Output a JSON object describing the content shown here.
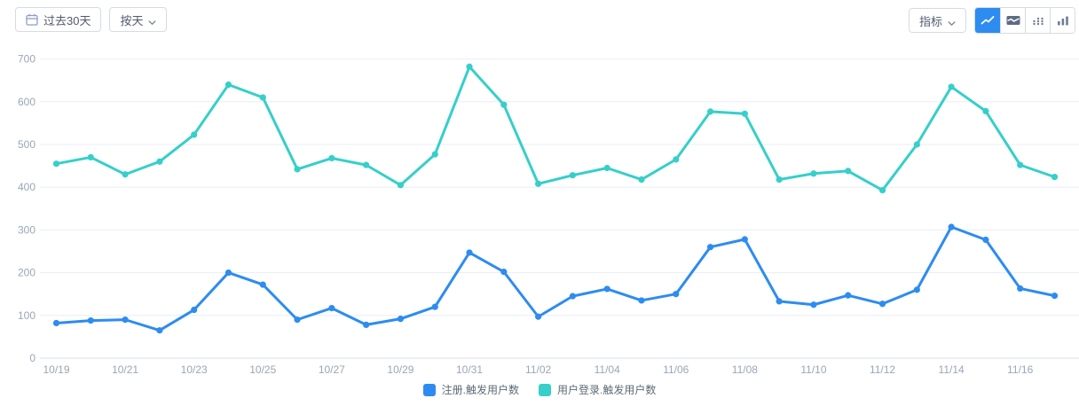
{
  "toolbar": {
    "date_range_label": "过去30天",
    "granularity_label": "按天",
    "metric_label": "指标",
    "chart_type_buttons": [
      {
        "name": "line-chart",
        "active": true
      },
      {
        "name": "area-chart",
        "active": false
      },
      {
        "name": "dot-column-chart",
        "active": false
      },
      {
        "name": "bar-chart",
        "active": false
      }
    ]
  },
  "colors": {
    "accent_blue": "#2d8cf0",
    "series_register": "#2d8cf0",
    "series_login": "#36cfc9",
    "axis_label": "#9aa6b8",
    "gridline": "#eaeef5",
    "axis_line": "#d8dee8",
    "button_text": "#515a6e",
    "button_border": "#d6dce4"
  },
  "chart_data": {
    "type": "line",
    "x": [
      "10/19",
      "10/20",
      "10/21",
      "10/22",
      "10/23",
      "10/24",
      "10/25",
      "10/26",
      "10/27",
      "10/28",
      "10/29",
      "10/30",
      "10/31",
      "11/01",
      "11/02",
      "11/03",
      "11/04",
      "11/05",
      "11/06",
      "11/07",
      "11/08",
      "11/09",
      "11/10",
      "11/11",
      "11/12",
      "11/13",
      "11/14",
      "11/15",
      "11/16",
      "11/17"
    ],
    "xlabel_every": 2,
    "series": [
      {
        "name": "注册.触发用户数",
        "color": "#2d8cf0",
        "values": [
          82,
          88,
          90,
          65,
          113,
          200,
          172,
          90,
          117,
          78,
          92,
          120,
          247,
          202,
          97,
          145,
          162,
          135,
          150,
          260,
          278,
          133,
          125,
          147,
          127,
          160,
          307,
          277,
          163,
          146
        ]
      },
      {
        "name": "用户登录.触发用户数",
        "color": "#36cfc9",
        "values": [
          455,
          470,
          430,
          460,
          523,
          640,
          610,
          442,
          468,
          452,
          405,
          477,
          682,
          593,
          408,
          428,
          445,
          418,
          465,
          577,
          572,
          418,
          432,
          438,
          393,
          500,
          635,
          578,
          452,
          424
        ]
      }
    ],
    "ylim": [
      0,
      700
    ],
    "yticks": [
      0,
      100,
      200,
      300,
      400,
      500,
      600,
      700
    ],
    "grid": true,
    "legend_position": "bottom"
  }
}
